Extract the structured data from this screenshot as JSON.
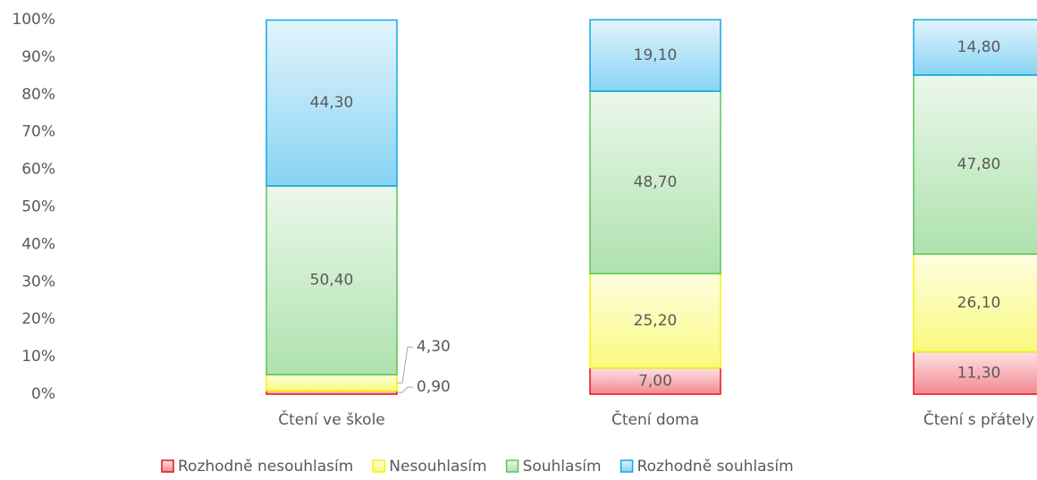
{
  "chart_data": {
    "type": "stacked_bar_100",
    "categories": [
      "Čtení ve škole",
      "Čtení doma",
      "Čtení s přátely"
    ],
    "series": [
      {
        "name": "Rozhodně nesouhlasím",
        "color": "#e8101e",
        "values": [
          0.9,
          7.0,
          11.3
        ],
        "value_labels": [
          "0,90",
          "7,00",
          "11,30"
        ]
      },
      {
        "name": "Nesouhlasím",
        "color": "#f5f500",
        "values": [
          4.3,
          25.2,
          26.1
        ],
        "value_labels": [
          "4,30",
          "25,20",
          "26,10"
        ]
      },
      {
        "name": "Souhlasím",
        "color": "#5cc45c",
        "values": [
          50.4,
          48.7,
          47.8
        ],
        "value_labels": [
          "50,40",
          "48,70",
          "47,80"
        ]
      },
      {
        "name": "Rozhodně souhlasím",
        "color": "#10a8e8",
        "values": [
          44.3,
          19.1,
          14.8
        ],
        "value_labels": [
          "44,30",
          "19,10",
          "14,80"
        ]
      }
    ],
    "ylim": [
      0,
      100
    ],
    "yticks": [
      {
        "value": 0,
        "label": "0%"
      },
      {
        "value": 10,
        "label": "10%"
      },
      {
        "value": 20,
        "label": "20%"
      },
      {
        "value": 30,
        "label": "30%"
      },
      {
        "value": 40,
        "label": "40%"
      },
      {
        "value": 50,
        "label": "50%"
      },
      {
        "value": 60,
        "label": "60%"
      },
      {
        "value": 70,
        "label": "70%"
      },
      {
        "value": 80,
        "label": "80%"
      },
      {
        "value": 90,
        "label": "90%"
      },
      {
        "value": 100,
        "label": "100%"
      }
    ],
    "legend": "bottom"
  }
}
